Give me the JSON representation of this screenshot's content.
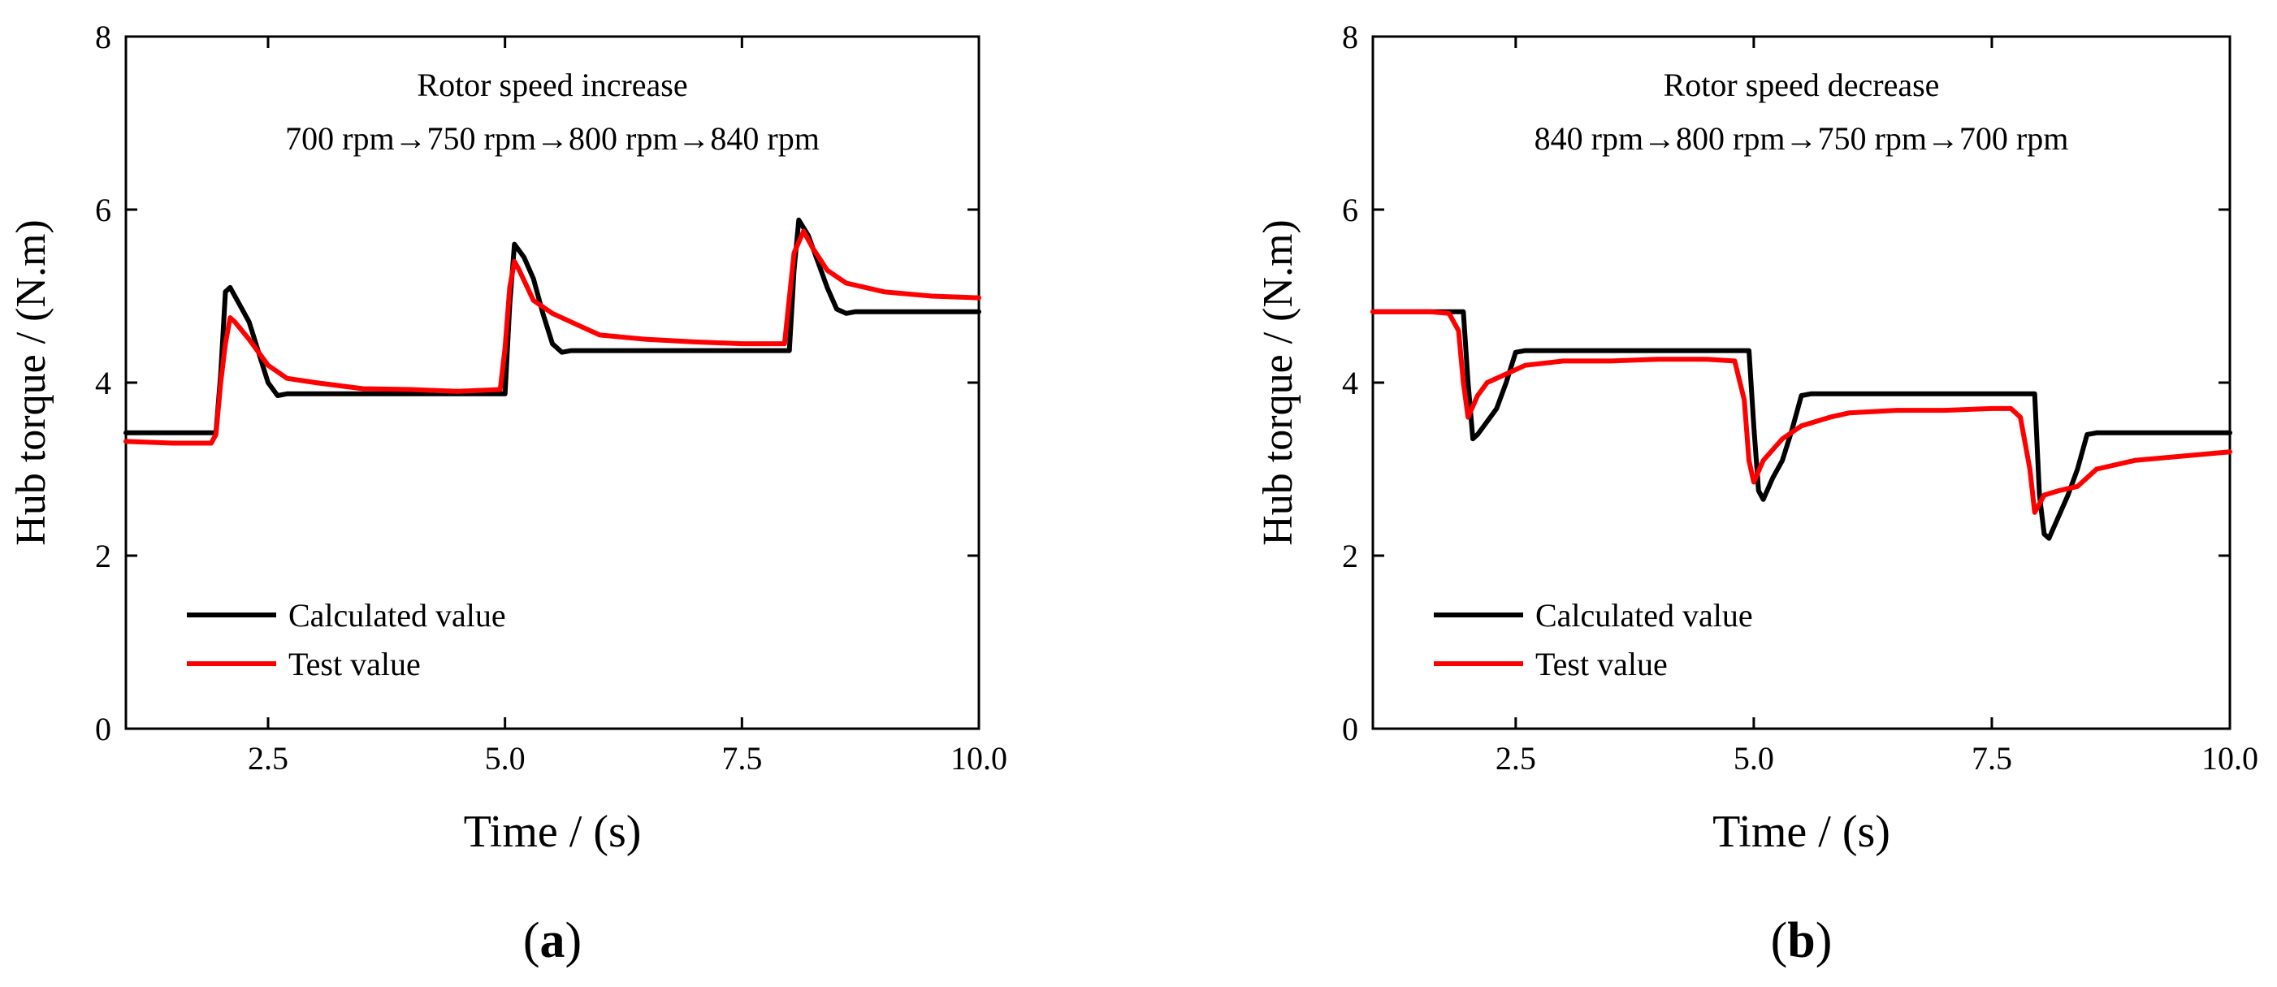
{
  "chart_data": [
    {
      "type": "line",
      "panel_label": "a",
      "annotation_line1": "Rotor speed increase",
      "annotation_line2": "700 rpm→750 rpm→800 rpm→840 rpm",
      "xlabel": "Time / (s)",
      "ylabel": "Hub torque / (N.m)",
      "xlim": [
        1.0,
        10.0
      ],
      "ylim": [
        0,
        8
      ],
      "xticks": [
        2.5,
        5.0,
        7.5,
        10.0
      ],
      "xtick_labels": [
        "2.5",
        "5.0",
        "7.5",
        "10.0"
      ],
      "yticks": [
        0,
        2,
        4,
        6,
        8
      ],
      "ytick_labels": [
        "0",
        "2",
        "4",
        "6",
        "8"
      ],
      "legend": [
        "Calculated value",
        "Test value"
      ],
      "legend_position": "bottom-left",
      "series": [
        {
          "name": "Calculated value",
          "color": "#000000",
          "x": [
            1.0,
            1.95,
            2.0,
            2.05,
            2.1,
            2.2,
            2.3,
            2.4,
            2.5,
            2.6,
            2.7,
            5.0,
            5.05,
            5.1,
            5.2,
            5.3,
            5.4,
            5.5,
            5.6,
            5.7,
            8.0,
            8.05,
            8.1,
            8.2,
            8.3,
            8.4,
            8.5,
            8.6,
            8.7,
            10.0
          ],
          "values": [
            3.42,
            3.42,
            4.1,
            5.05,
            5.1,
            4.9,
            4.7,
            4.35,
            4.0,
            3.85,
            3.87,
            3.87,
            4.9,
            5.6,
            5.45,
            5.2,
            4.8,
            4.45,
            4.35,
            4.37,
            4.37,
            5.3,
            5.88,
            5.7,
            5.4,
            5.1,
            4.85,
            4.8,
            4.82,
            4.82
          ]
        },
        {
          "name": "Test value",
          "color": "#ff0000",
          "x": [
            1.0,
            1.5,
            1.9,
            1.95,
            2.0,
            2.05,
            2.1,
            2.15,
            2.3,
            2.5,
            2.7,
            3.0,
            3.5,
            4.0,
            4.5,
            4.95,
            5.0,
            5.05,
            5.1,
            5.15,
            5.3,
            5.5,
            5.8,
            6.0,
            6.5,
            7.0,
            7.5,
            7.95,
            8.05,
            8.15,
            8.25,
            8.4,
            8.6,
            9.0,
            9.5,
            10.0
          ],
          "values": [
            3.32,
            3.3,
            3.3,
            3.4,
            4.0,
            4.45,
            4.75,
            4.7,
            4.5,
            4.2,
            4.05,
            4.0,
            3.93,
            3.92,
            3.9,
            3.92,
            4.4,
            5.1,
            5.4,
            5.3,
            4.95,
            4.8,
            4.65,
            4.55,
            4.5,
            4.47,
            4.45,
            4.45,
            5.5,
            5.75,
            5.55,
            5.3,
            5.15,
            5.05,
            5.0,
            4.98
          ]
        }
      ]
    },
    {
      "type": "line",
      "panel_label": "b",
      "annotation_line1": "Rotor speed decrease",
      "annotation_line2": "840 rpm→800 rpm→750 rpm→700 rpm",
      "xlabel": "Time / (s)",
      "ylabel": "Hub torque / (N.m)",
      "xlim": [
        1.0,
        10.0
      ],
      "ylim": [
        0,
        8
      ],
      "xticks": [
        2.5,
        5.0,
        7.5,
        10.0
      ],
      "xtick_labels": [
        "2.5",
        "5.0",
        "7.5",
        "10.0"
      ],
      "yticks": [
        0,
        2,
        4,
        6,
        8
      ],
      "ytick_labels": [
        "0",
        "2",
        "4",
        "6",
        "8"
      ],
      "legend": [
        "Calculated value",
        "Test value"
      ],
      "legend_position": "bottom-left",
      "series": [
        {
          "name": "Calculated value",
          "color": "#000000",
          "x": [
            1.0,
            1.95,
            2.0,
            2.05,
            2.1,
            2.2,
            2.3,
            2.4,
            2.5,
            2.6,
            4.95,
            5.0,
            5.05,
            5.1,
            5.2,
            5.3,
            5.4,
            5.5,
            5.6,
            7.95,
            8.0,
            8.05,
            8.1,
            8.2,
            8.3,
            8.4,
            8.5,
            8.6,
            10.0
          ],
          "values": [
            4.82,
            4.82,
            4.0,
            3.35,
            3.4,
            3.55,
            3.7,
            4.0,
            4.35,
            4.37,
            4.37,
            3.5,
            2.75,
            2.65,
            2.9,
            3.1,
            3.45,
            3.85,
            3.87,
            3.87,
            2.7,
            2.25,
            2.2,
            2.45,
            2.7,
            3.0,
            3.4,
            3.42,
            3.42
          ]
        },
        {
          "name": "Test value",
          "color": "#ff0000",
          "x": [
            1.0,
            1.6,
            1.8,
            1.9,
            1.95,
            2.0,
            2.1,
            2.2,
            2.4,
            2.6,
            3.0,
            3.5,
            4.0,
            4.5,
            4.8,
            4.9,
            4.95,
            5.0,
            5.1,
            5.3,
            5.5,
            5.8,
            6.0,
            6.5,
            7.0,
            7.5,
            7.7,
            7.8,
            7.9,
            7.95,
            8.05,
            8.2,
            8.4,
            8.6,
            9.0,
            9.5,
            10.0
          ],
          "values": [
            4.82,
            4.82,
            4.8,
            4.6,
            4.0,
            3.6,
            3.85,
            4.0,
            4.1,
            4.2,
            4.25,
            4.25,
            4.27,
            4.27,
            4.25,
            3.8,
            3.1,
            2.85,
            3.1,
            3.35,
            3.5,
            3.6,
            3.65,
            3.68,
            3.68,
            3.7,
            3.7,
            3.6,
            3.0,
            2.5,
            2.7,
            2.75,
            2.8,
            3.0,
            3.1,
            3.15,
            3.2
          ]
        }
      ]
    }
  ]
}
